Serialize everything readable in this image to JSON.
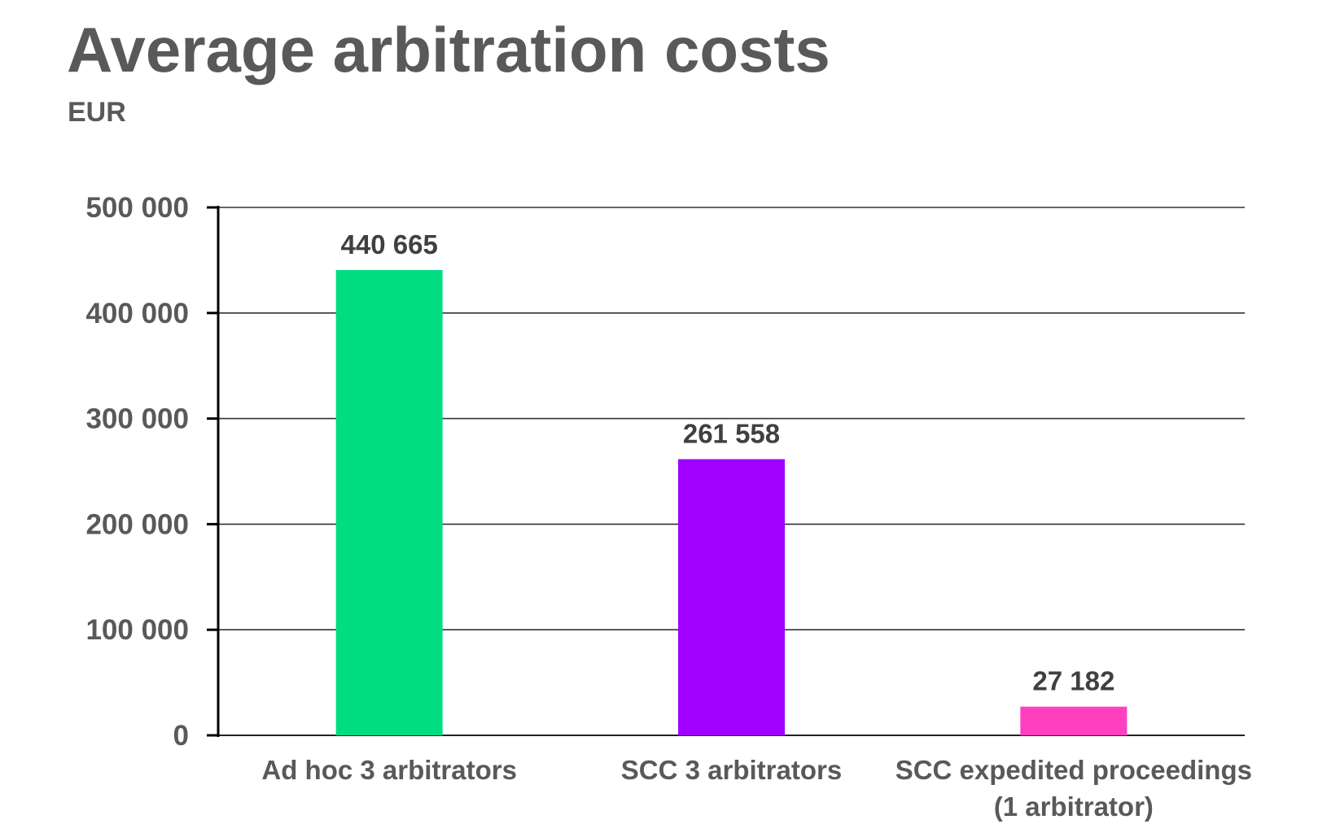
{
  "chart_data": {
    "type": "bar",
    "title": "Average arbitration costs",
    "subtitle": "EUR",
    "xlabel": "",
    "ylabel": "",
    "categories": [
      [
        "Ad hoc 3 arbitrators"
      ],
      [
        "SCC 3 arbitrators"
      ],
      [
        "SCC expedited proceedings",
        "(1 arbitrator)"
      ]
    ],
    "values": [
      440665,
      261558,
      27182
    ],
    "value_labels": [
      "440 665",
      "261 558",
      "27 182"
    ],
    "colors": [
      "#00DC82",
      "#A000FF",
      "#FF40BE"
    ],
    "ylim": [
      0,
      500000
    ],
    "yticks": [
      0,
      100000,
      200000,
      300000,
      400000,
      500000
    ],
    "ytick_labels": [
      "0",
      "100 000",
      "200 000",
      "300 000",
      "400 000",
      "500 000"
    ],
    "grid": true,
    "legend": "none"
  }
}
